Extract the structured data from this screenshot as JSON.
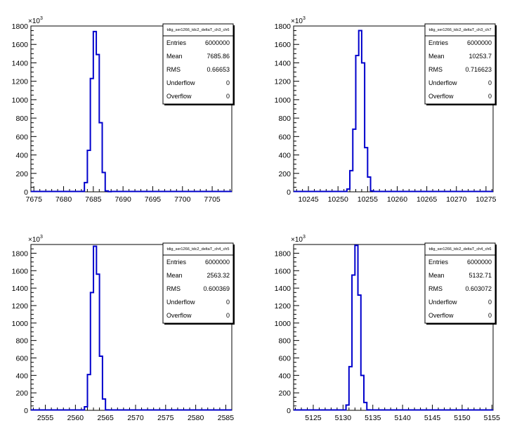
{
  "chart_data": [
    {
      "type": "bar",
      "title": "",
      "stats_title": "tdig_ser1266_tdc2_deltaT_ch3_ch6",
      "y_multiplier_label": "×10",
      "y_multiplier_exp": "3",
      "xlim": [
        7674.5,
        7708.3
      ],
      "ylim": [
        0,
        1800
      ],
      "x_ticks": [
        7675,
        7680,
        7685,
        7690,
        7695,
        7700,
        7705
      ],
      "x_tick_labels": [
        "7675",
        "7680",
        "7685",
        "7690",
        "7695",
        "7700",
        "7705"
      ],
      "y_ticks": [
        0,
        200,
        400,
        600,
        800,
        1000,
        1200,
        1400,
        1600,
        1800
      ],
      "y_tick_labels": [
        "0",
        "200",
        "400",
        "600",
        "800",
        "1000",
        "1200",
        "1400",
        "1600",
        "1800"
      ],
      "bin_width": 0.5,
      "bins_x_start": [
        7683,
        7683.5,
        7684,
        7684.5,
        7685,
        7685.5,
        7686,
        7686.5,
        7687,
        7687.5
      ],
      "values": [
        5,
        100,
        450,
        1230,
        1740,
        1490,
        750,
        210,
        10,
        2
      ],
      "stats": [
        {
          "key": "Entries",
          "value": "6000000"
        },
        {
          "key": "Mean",
          "value": "7685.86"
        },
        {
          "key": "RMS",
          "value": "0.66653"
        },
        {
          "key": "Underflow",
          "value": "0"
        },
        {
          "key": "Overflow",
          "value": "0"
        }
      ]
    },
    {
      "type": "bar",
      "title": "",
      "stats_title": "tdig_ser1266_tdc2_deltaT_ch3_ch7",
      "y_multiplier_label": "×10",
      "y_multiplier_exp": "3",
      "xlim": [
        10242.5,
        10276.2
      ],
      "ylim": [
        0,
        1800
      ],
      "x_ticks": [
        10245,
        10250,
        10255,
        10260,
        10265,
        10270,
        10275
      ],
      "x_tick_labels": [
        "10245",
        "10250",
        "10255",
        "10260",
        "10265",
        "10270",
        "10275"
      ],
      "y_ticks": [
        0,
        200,
        400,
        600,
        800,
        1000,
        1200,
        1400,
        1600,
        1800
      ],
      "y_tick_labels": [
        "0",
        "200",
        "400",
        "600",
        "800",
        "1000",
        "1200",
        "1400",
        "1600",
        "1800"
      ],
      "bin_width": 0.5,
      "bins_x_start": [
        10251.5,
        10252,
        10252.5,
        10253,
        10253.5,
        10254,
        10254.5,
        10255,
        10255.5
      ],
      "values": [
        30,
        230,
        680,
        1480,
        1750,
        1400,
        480,
        160,
        10
      ],
      "stats": [
        {
          "key": "Entries",
          "value": "6000000"
        },
        {
          "key": "Mean",
          "value": "10253.7"
        },
        {
          "key": "RMS",
          "value": "0.716623"
        },
        {
          "key": "Underflow",
          "value": "0"
        },
        {
          "key": "Overflow",
          "value": "0"
        }
      ]
    },
    {
      "type": "bar",
      "title": "",
      "stats_title": "tdig_ser1266_tdc2_deltaT_ch4_ch5",
      "y_multiplier_label": "×10",
      "y_multiplier_exp": "3",
      "xlim": [
        2552.6,
        2586.0
      ],
      "ylim": [
        0,
        1900
      ],
      "x_ticks": [
        2555,
        2560,
        2565,
        2570,
        2575,
        2580,
        2585
      ],
      "x_tick_labels": [
        "2555",
        "2560",
        "2565",
        "2570",
        "2575",
        "2580",
        "2585"
      ],
      "y_ticks": [
        0,
        200,
        400,
        600,
        800,
        1000,
        1200,
        1400,
        1600,
        1800
      ],
      "y_tick_labels": [
        "0",
        "200",
        "400",
        "600",
        "800",
        "1000",
        "1200",
        "1400",
        "1600",
        "1800"
      ],
      "bin_width": 0.5,
      "bins_x_start": [
        2561.5,
        2562,
        2562.5,
        2563,
        2563.5,
        2564,
        2564.5,
        2565
      ],
      "values": [
        40,
        410,
        1350,
        1880,
        1560,
        620,
        130,
        5
      ],
      "stats": [
        {
          "key": "Entries",
          "value": "6000000"
        },
        {
          "key": "Mean",
          "value": "2563.32"
        },
        {
          "key": "RMS",
          "value": "0.600369"
        },
        {
          "key": "Underflow",
          "value": "0"
        },
        {
          "key": "Overflow",
          "value": "0"
        }
      ]
    },
    {
      "type": "bar",
      "title": "",
      "stats_title": "tdig_ser1266_tdc2_deltaT_ch4_ch6",
      "y_multiplier_label": "×10",
      "y_multiplier_exp": "3",
      "xlim": [
        5121.7,
        5155.2
      ],
      "ylim": [
        0,
        1900
      ],
      "x_ticks": [
        5125,
        5130,
        5135,
        5140,
        5145,
        5150,
        5155
      ],
      "x_tick_labels": [
        "5125",
        "5130",
        "5135",
        "5140",
        "5145",
        "5150",
        "5155"
      ],
      "y_ticks": [
        0,
        200,
        400,
        600,
        800,
        1000,
        1200,
        1400,
        1600,
        1800
      ],
      "y_tick_labels": [
        "0",
        "200",
        "400",
        "600",
        "800",
        "1000",
        "1200",
        "1400",
        "1600",
        "1800"
      ],
      "bin_width": 0.5,
      "bins_x_start": [
        5130.5,
        5131,
        5131.5,
        5132,
        5132.5,
        5133,
        5133.5,
        5134
      ],
      "values": [
        60,
        500,
        1550,
        1890,
        1320,
        400,
        90,
        5
      ],
      "stats": [
        {
          "key": "Entries",
          "value": "6000000"
        },
        {
          "key": "Mean",
          "value": "5132.71"
        },
        {
          "key": "RMS",
          "value": "0.603072"
        },
        {
          "key": "Underflow",
          "value": "0"
        },
        {
          "key": "Overflow",
          "value": "0"
        }
      ]
    }
  ],
  "colors": {
    "histogram_line": "#0000cc",
    "axis": "#000000",
    "background": "#ffffff"
  }
}
